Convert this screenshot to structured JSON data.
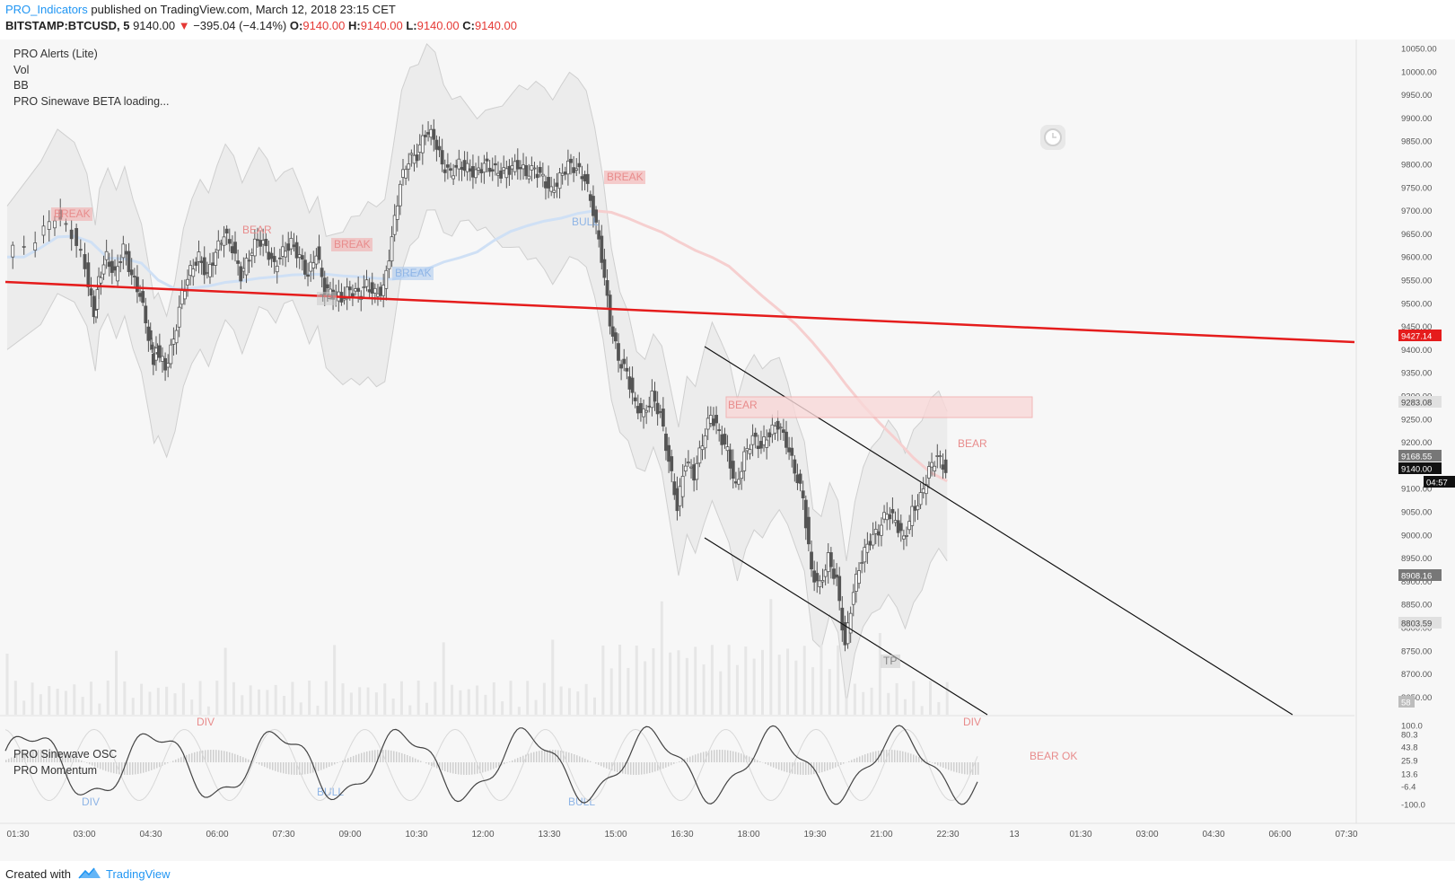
{
  "header": {
    "author": "PRO_Indicators",
    "published_text": "published on TradingView.com, March 12, 2018 23:15 CET",
    "symbol": "BITSTAMP:BTCUSD, 5",
    "last_price": "9140.00",
    "change": "−395.04 (−4.14%)",
    "o_label": "O:",
    "o_value": "9140.00",
    "h_label": "H:",
    "h_value": "9140.00",
    "l_label": "L:",
    "l_value": "9140.00",
    "c_label": "C:",
    "c_value": "9140.00"
  },
  "legend": {
    "items": [
      "PRO Alerts (Lite)",
      "Vol",
      "BB",
      "PRO Sinewave BETA loading..."
    ]
  },
  "osc_legend": {
    "items": [
      "PRO Sinewave OSC",
      "PRO Momentum"
    ]
  },
  "footer": {
    "created_with": "Created with",
    "brand": "TradingView"
  },
  "colors": {
    "red_trendline": "#e51c1c",
    "channel": "#111111",
    "bollinger_fill": "#e8e8e8",
    "bear": "#f2a8a8",
    "bull": "#a9c8ee",
    "candle": "#555555"
  },
  "icons": [
    "clock-icon",
    "tradingview-logo-icon",
    "down-triangle-icon"
  ],
  "chart_data": {
    "type": "candlestick",
    "title": "",
    "y_axis": {
      "ticks": [
        10050,
        10000,
        9950,
        9900,
        9850,
        9800,
        9750,
        9700,
        9650,
        9600,
        9550,
        9500,
        9450,
        9400,
        9350,
        9300,
        9250,
        9200,
        9150,
        9100,
        9050,
        9000,
        8950,
        8900,
        8850,
        8800,
        8750,
        8700,
        8650
      ],
      "ylim": [
        8630,
        10060
      ]
    },
    "x_axis": {
      "ticks": [
        "01:30",
        "03:00",
        "04:30",
        "06:00",
        "07:30",
        "09:00",
        "10:30",
        "12:00",
        "13:30",
        "15:00",
        "16:30",
        "18:00",
        "19:30",
        "21:00",
        "22:30",
        "13",
        "01:30",
        "03:00",
        "04:30",
        "06:00",
        "07:30"
      ]
    },
    "price_markers": [
      {
        "value": "9427.14",
        "kind": "red"
      },
      {
        "value": "9283.08",
        "kind": "light"
      },
      {
        "value": "9168.55",
        "kind": "dark"
      },
      {
        "value": "9140.00",
        "kind": "black"
      },
      {
        "value": "04:57",
        "kind": "black"
      },
      {
        "value": "8908.16",
        "kind": "dark"
      },
      {
        "value": "8803.59",
        "kind": "light"
      },
      {
        "value": "58",
        "kind": "gray"
      }
    ],
    "price_path": [
      [
        0,
        9600
      ],
      [
        4,
        9640
      ],
      [
        6,
        9690
      ],
      [
        8,
        9650
      ],
      [
        9.5,
        9580
      ],
      [
        10.5,
        9470
      ],
      [
        11,
        9550
      ],
      [
        12,
        9600
      ],
      [
        13,
        9560
      ],
      [
        14,
        9620
      ],
      [
        15,
        9560
      ],
      [
        16,
        9520
      ],
      [
        17,
        9430
      ],
      [
        17.5,
        9380
      ],
      [
        18,
        9400
      ],
      [
        19,
        9360
      ],
      [
        20,
        9420
      ],
      [
        21,
        9520
      ],
      [
        22,
        9570
      ],
      [
        23,
        9600
      ],
      [
        24,
        9560
      ],
      [
        25,
        9610
      ],
      [
        26,
        9650
      ],
      [
        27,
        9620
      ],
      [
        28,
        9560
      ],
      [
        29,
        9600
      ],
      [
        30,
        9640
      ],
      [
        31,
        9620
      ],
      [
        32,
        9580
      ],
      [
        33,
        9610
      ],
      [
        34,
        9630
      ],
      [
        35,
        9600
      ],
      [
        36,
        9560
      ],
      [
        37,
        9610
      ],
      [
        38,
        9530
      ],
      [
        39,
        9520
      ],
      [
        40,
        9510
      ],
      [
        41,
        9530
      ],
      [
        42,
        9520
      ],
      [
        43,
        9540
      ],
      [
        44,
        9520
      ],
      [
        45,
        9530
      ],
      [
        46,
        9640
      ],
      [
        47,
        9760
      ],
      [
        48,
        9810
      ],
      [
        49,
        9820
      ],
      [
        50,
        9870
      ],
      [
        51,
        9860
      ],
      [
        52,
        9800
      ],
      [
        53,
        9780
      ],
      [
        54,
        9800
      ],
      [
        55,
        9790
      ],
      [
        56,
        9780
      ],
      [
        57,
        9800
      ],
      [
        58,
        9790
      ],
      [
        59,
        9780
      ],
      [
        60,
        9790
      ],
      [
        61,
        9800
      ],
      [
        62,
        9780
      ],
      [
        63,
        9790
      ],
      [
        64,
        9770
      ],
      [
        65,
        9740
      ],
      [
        66,
        9770
      ],
      [
        67,
        9800
      ],
      [
        68,
        9790
      ],
      [
        69,
        9770
      ],
      [
        70,
        9700
      ],
      [
        71,
        9600
      ],
      [
        72,
        9460
      ],
      [
        73,
        9380
      ],
      [
        74,
        9350
      ],
      [
        75,
        9280
      ],
      [
        76,
        9260
      ],
      [
        77,
        9300
      ],
      [
        78,
        9260
      ],
      [
        79,
        9160
      ],
      [
        80,
        9060
      ],
      [
        81,
        9160
      ],
      [
        82,
        9130
      ],
      [
        83,
        9200
      ],
      [
        84,
        9260
      ],
      [
        85,
        9220
      ],
      [
        86,
        9180
      ],
      [
        87,
        9100
      ],
      [
        88,
        9170
      ],
      [
        89,
        9210
      ],
      [
        90,
        9190
      ],
      [
        91,
        9220
      ],
      [
        92,
        9240
      ],
      [
        93,
        9200
      ],
      [
        94,
        9140
      ],
      [
        95,
        9080
      ],
      [
        96,
        8920
      ],
      [
        97,
        8890
      ],
      [
        98,
        8950
      ],
      [
        99,
        8900
      ],
      [
        100,
        8760
      ],
      [
        101,
        8880
      ],
      [
        102,
        8950
      ],
      [
        103,
        8990
      ],
      [
        104,
        9010
      ],
      [
        105,
        9050
      ],
      [
        106,
        9030
      ],
      [
        107,
        8990
      ],
      [
        108,
        9050
      ],
      [
        109,
        9080
      ],
      [
        110,
        9140
      ],
      [
        111,
        9170
      ],
      [
        112,
        9140
      ]
    ],
    "annotations": [
      "BREAK",
      "BEAR",
      "BREAK",
      "BREAK",
      "TP",
      "BREAK",
      "BULL",
      "BEAR",
      "TP",
      "BEAR",
      "DIV",
      "DIV",
      "DIV",
      "BULL",
      "BULL",
      "BEAR OK"
    ],
    "oscillator_ticks": [
      "100.0",
      "80.3",
      "43.8",
      "25.9",
      "13.6",
      "-6.4",
      "-100.0"
    ]
  }
}
